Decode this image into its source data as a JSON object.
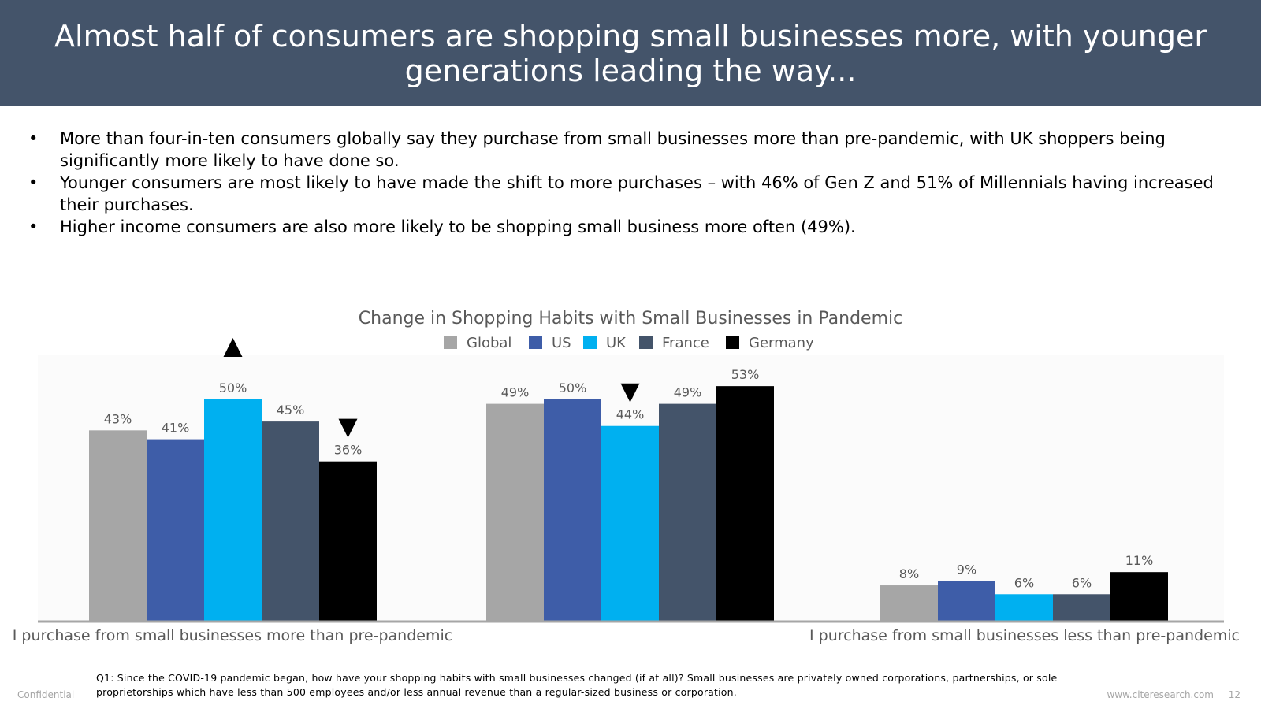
{
  "header": {
    "title": "Almost half of consumers are shopping small businesses more, with younger generations leading the way..."
  },
  "bullets": [
    "More than four-in-ten consumers globally say they purchase from small businesses more than pre-pandemic, with UK shoppers being significantly more likely to have done so.",
    "Younger consumers are most likely to have made the shift to more purchases – with 46% of Gen Z and 51% of Millennials having increased their purchases.",
    "Higher income consumers are also more likely to be shopping small business more often (49%)."
  ],
  "chart_data": {
    "type": "bar",
    "title": "Change in Shopping Habits with Small Businesses in Pandemic",
    "categories": [
      "I purchase from small businesses more than pre-pandemic",
      "",
      "I purchase from small businesses less than pre-pandemic"
    ],
    "series": [
      {
        "name": "Global",
        "color": "#a6a6a6",
        "values": [
          43,
          49,
          8
        ]
      },
      {
        "name": "US",
        "color": "#3e5da8",
        "values": [
          41,
          50,
          9
        ]
      },
      {
        "name": "UK",
        "color": "#00b0f0",
        "values": [
          50,
          44,
          6
        ]
      },
      {
        "name": "France",
        "color": "#44546a",
        "values": [
          45,
          49,
          6
        ]
      },
      {
        "name": "Germany",
        "color": "#000000",
        "values": [
          36,
          53,
          11
        ]
      }
    ],
    "value_suffix": "%",
    "ylim": [
      0,
      60
    ],
    "legend": "top-center",
    "significance_markers": [
      {
        "category_index": 0,
        "series": "UK",
        "direction": "up"
      },
      {
        "category_index": 0,
        "series": "Germany",
        "direction": "down"
      },
      {
        "category_index": 1,
        "series": "UK",
        "direction": "down"
      }
    ]
  },
  "footnote": "Q1: Since the COVID-19 pandemic began, how have your shopping habits with small businesses changed (if at all)? Small businesses are privately owned corporations, partnerships, or sole proprietorships which have less than 500 employees and/or less annual revenue than a regular-sized business or corporation.",
  "footer": {
    "confidential": "Confidential",
    "site": "www.citeresearch.com",
    "page": "12"
  }
}
